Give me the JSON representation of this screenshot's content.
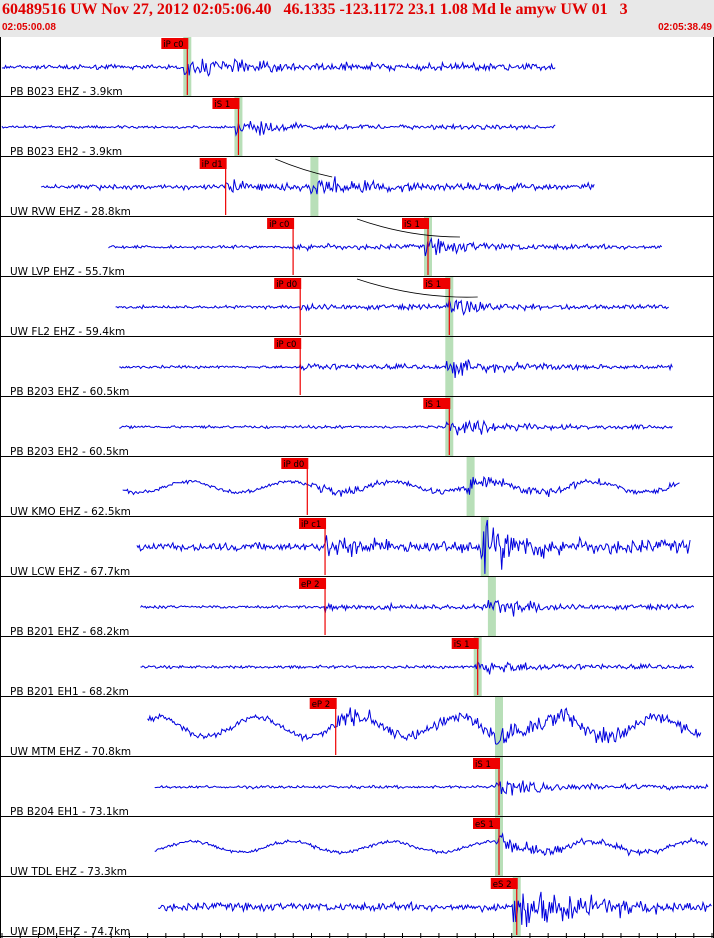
{
  "header": {
    "title": "60489516 UW Nov 27, 2012 02:05:06.40   46.1335 -123.1172 23.1 1.08 Md le amyw UW 01   3",
    "start_time": "02:05:00.08",
    "end_time": "02:05:38.49"
  },
  "colors": {
    "trace": "#0000dd",
    "pick_box": "#ee0000",
    "window": "#b8dfb8",
    "moveout": "#000000",
    "border": "#000000"
  },
  "traces": [
    {
      "label": "PB B023 EHZ - 3.9km",
      "t0": 0.0,
      "t1": 0.78,
      "amp": "med",
      "kind": "noisy",
      "picks": [
        {
          "t": 0.261,
          "text": "iP c0",
          "kind": "P"
        }
      ],
      "arrival": 0.261
    },
    {
      "label": "PB B023 EH2 - 3.9km",
      "t0": 0.0,
      "t1": 0.78,
      "amp": "small",
      "kind": "noisy",
      "picks": [
        {
          "t": 0.333,
          "text": "iS 1",
          "kind": "S"
        }
      ],
      "arrival": 0.333
    },
    {
      "label": "UW RVW EHZ - 28.8km",
      "t0": 0.055,
      "t1": 0.835,
      "amp": "med",
      "kind": "noisy",
      "picks": [
        {
          "t": 0.315,
          "text": "iP d1",
          "kind": "P"
        }
      ],
      "arrival": 0.44
    },
    {
      "label": "UW LVP EHZ - 55.7km",
      "t0": 0.15,
      "t1": 0.93,
      "amp": "small",
      "kind": "noisy",
      "picks": [
        {
          "t": 0.41,
          "text": "iP c0",
          "kind": "P"
        },
        {
          "t": 0.6,
          "text": "iS 1",
          "kind": "S"
        }
      ],
      "arrival": 0.6
    },
    {
      "label": "UW FL2 EHZ - 59.4km",
      "t0": 0.16,
      "t1": 0.94,
      "amp": "small",
      "kind": "noisy",
      "picks": [
        {
          "t": 0.42,
          "text": "iP d0",
          "kind": "P"
        },
        {
          "t": 0.63,
          "text": "iS 1",
          "kind": "S"
        }
      ],
      "arrival": 0.63
    },
    {
      "label": "PB B203 EHZ - 60.5km",
      "t0": 0.165,
      "t1": 0.945,
      "amp": "small",
      "kind": "noisy",
      "picks": [
        {
          "t": 0.42,
          "text": "iP c0",
          "kind": "P"
        }
      ],
      "arrival": 0.63
    },
    {
      "label": "PB B203 EH2 - 60.5km",
      "t0": 0.165,
      "t1": 0.945,
      "amp": "small",
      "kind": "noisy",
      "picks": [
        {
          "t": 0.63,
          "text": "iS 1",
          "kind": "S"
        }
      ],
      "arrival": 0.63
    },
    {
      "label": "UW KMO EHZ - 62.5km",
      "t0": 0.17,
      "t1": 0.955,
      "amp": "med",
      "kind": "wavy",
      "picks": [
        {
          "t": 0.43,
          "text": "iP d0",
          "kind": "P"
        }
      ],
      "arrival": 0.66
    },
    {
      "label": "UW LCW EHZ - 67.7km",
      "t0": 0.19,
      "t1": 0.97,
      "amp": "large",
      "kind": "noisy",
      "picks": [
        {
          "t": 0.455,
          "text": "iP c1",
          "kind": "P"
        }
      ],
      "arrival": 0.68
    },
    {
      "label": "PB B201 EHZ - 68.2km",
      "t0": 0.195,
      "t1": 0.975,
      "amp": "small",
      "kind": "noisy",
      "picks": [
        {
          "t": 0.455,
          "text": "eP 2",
          "kind": "P"
        }
      ],
      "arrival": 0.69
    },
    {
      "label": "PB B201 EH1 - 68.2km",
      "t0": 0.195,
      "t1": 0.975,
      "amp": "small",
      "kind": "noisy",
      "picks": [
        {
          "t": 0.67,
          "text": "iS 1",
          "kind": "S"
        }
      ],
      "arrival": 0.67
    },
    {
      "label": "UW MTM EHZ - 70.8km",
      "t0": 0.205,
      "t1": 0.985,
      "amp": "large",
      "kind": "wavy",
      "picks": [
        {
          "t": 0.47,
          "text": "eP 2",
          "kind": "P"
        }
      ],
      "arrival": 0.7
    },
    {
      "label": "PB B204 EH1 - 73.1km",
      "t0": 0.215,
      "t1": 0.995,
      "amp": "small",
      "kind": "noisy",
      "picks": [
        {
          "t": 0.7,
          "text": "iS 1",
          "kind": "S"
        }
      ],
      "arrival": 0.7
    },
    {
      "label": "UW TDL EHZ - 73.3km",
      "t0": 0.215,
      "t1": 0.995,
      "amp": "med",
      "kind": "wavy",
      "picks": [
        {
          "t": 0.7,
          "text": "eS 1",
          "kind": "S"
        }
      ],
      "arrival": 0.7
    },
    {
      "label": "UW EDM EHZ - 74.7km",
      "t0": 0.22,
      "t1": 1.0,
      "amp": "large",
      "kind": "noisy",
      "picks": [
        {
          "t": 0.725,
          "text": "eS 2",
          "kind": "S"
        }
      ],
      "arrival": 0.725
    }
  ]
}
